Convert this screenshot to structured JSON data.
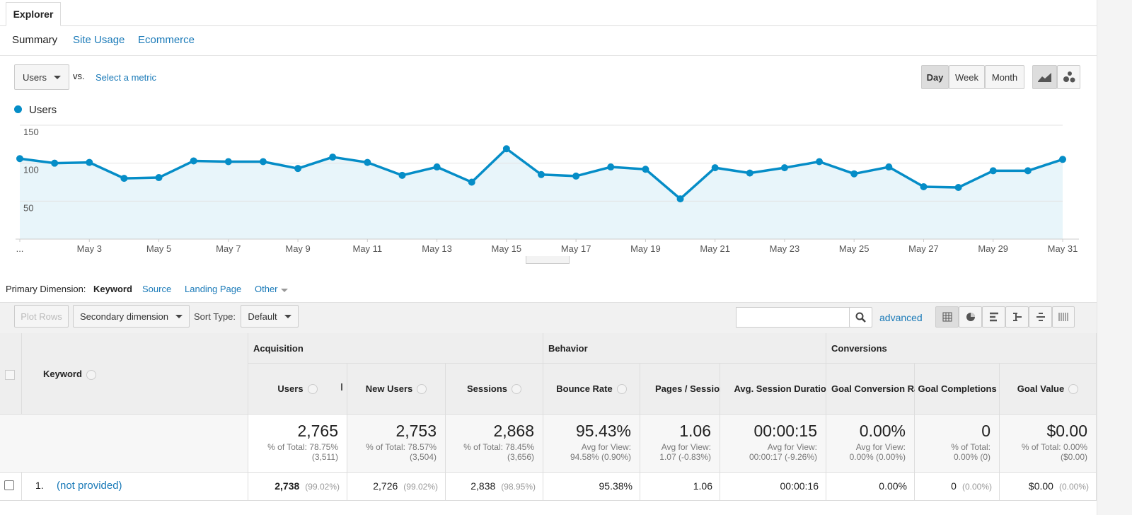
{
  "tabs": {
    "main": "Explorer",
    "sub": [
      "Summary",
      "Site Usage",
      "Ecommerce"
    ]
  },
  "metric_bar": {
    "metric": "Users",
    "vs": "vs.",
    "select": "Select a metric",
    "periods": [
      "Day",
      "Week",
      "Month"
    ]
  },
  "chart_data": {
    "type": "line",
    "categories": [
      "...",
      null,
      "May 3",
      null,
      "May 5",
      null,
      "May 7",
      null,
      "May 9",
      null,
      "May 11",
      null,
      "May 13",
      null,
      "May 15",
      null,
      "May 17",
      null,
      "May 19",
      null,
      "May 21",
      null,
      "May 23",
      null,
      "May 25",
      null,
      "May 27",
      null,
      "May 29",
      null,
      "May 31"
    ],
    "series": [
      {
        "name": "Users",
        "color": "#058dc7",
        "values": [
          106,
          100,
          101,
          80,
          81,
          103,
          102,
          102,
          93,
          108,
          101,
          84,
          95,
          75,
          119,
          85,
          83,
          95,
          92,
          53,
          94,
          87,
          94,
          102,
          86,
          95,
          69,
          68,
          90,
          90,
          105
        ]
      }
    ],
    "ylim": [
      0,
      150
    ],
    "yticks": [
      50,
      100,
      150
    ],
    "grid": true
  },
  "dimension_bar": {
    "label": "Primary Dimension:",
    "options": [
      "Keyword",
      "Source",
      "Landing Page",
      "Other"
    ]
  },
  "toolbar": {
    "plot_rows": "Plot Rows",
    "secondary": "Secondary dimension",
    "sort_label": "Sort Type:",
    "sort": "Default",
    "advanced": "advanced"
  },
  "table": {
    "groups": [
      "Acquisition",
      "Behavior",
      "Conversions"
    ],
    "dimension": "Keyword",
    "columns": [
      "Users",
      "New Users",
      "Sessions",
      "Bounce Rate",
      "Pages / Session",
      "Avg. Session Duration",
      "Goal Conversion Rate",
      "Goal Completions",
      "Goal Value"
    ],
    "totals": [
      {
        "value": "2,765",
        "note": [
          "% of Total: 78.75%",
          "(3,511)"
        ]
      },
      {
        "value": "2,753",
        "note": [
          "% of Total: 78.57%",
          "(3,504)"
        ]
      },
      {
        "value": "2,868",
        "note": [
          "% of Total: 78.45%",
          "(3,656)"
        ]
      },
      {
        "value": "95.43%",
        "note": [
          "Avg for View:",
          "94.58% (0.90%)"
        ]
      },
      {
        "value": "1.06",
        "note": [
          "Avg for View:",
          "1.07 (-0.83%)"
        ]
      },
      {
        "value": "00:00:15",
        "note": [
          "Avg for View:",
          "00:00:17 (-9.26%)"
        ]
      },
      {
        "value": "0.00%",
        "note": [
          "Avg for View:",
          "0.00% (0.00%)"
        ]
      },
      {
        "value": "0",
        "note": [
          "% of Total:",
          "0.00% (0)"
        ]
      },
      {
        "value": "$0.00",
        "note": [
          "% of Total: 0.00%",
          "($0.00)"
        ]
      }
    ],
    "rows": [
      {
        "index": "1.",
        "keyword": "(not provided)",
        "cells": [
          {
            "value": "2,738",
            "pct": "(99.02%)"
          },
          {
            "value": "2,726",
            "pct": "(99.02%)"
          },
          {
            "value": "2,838",
            "pct": "(98.95%)"
          },
          {
            "value": "95.38%"
          },
          {
            "value": "1.06"
          },
          {
            "value": "00:00:16"
          },
          {
            "value": "0.00%"
          },
          {
            "value": "0",
            "pct": "(0.00%)"
          },
          {
            "value": "$0.00",
            "pct": "(0.00%)"
          }
        ]
      }
    ]
  }
}
